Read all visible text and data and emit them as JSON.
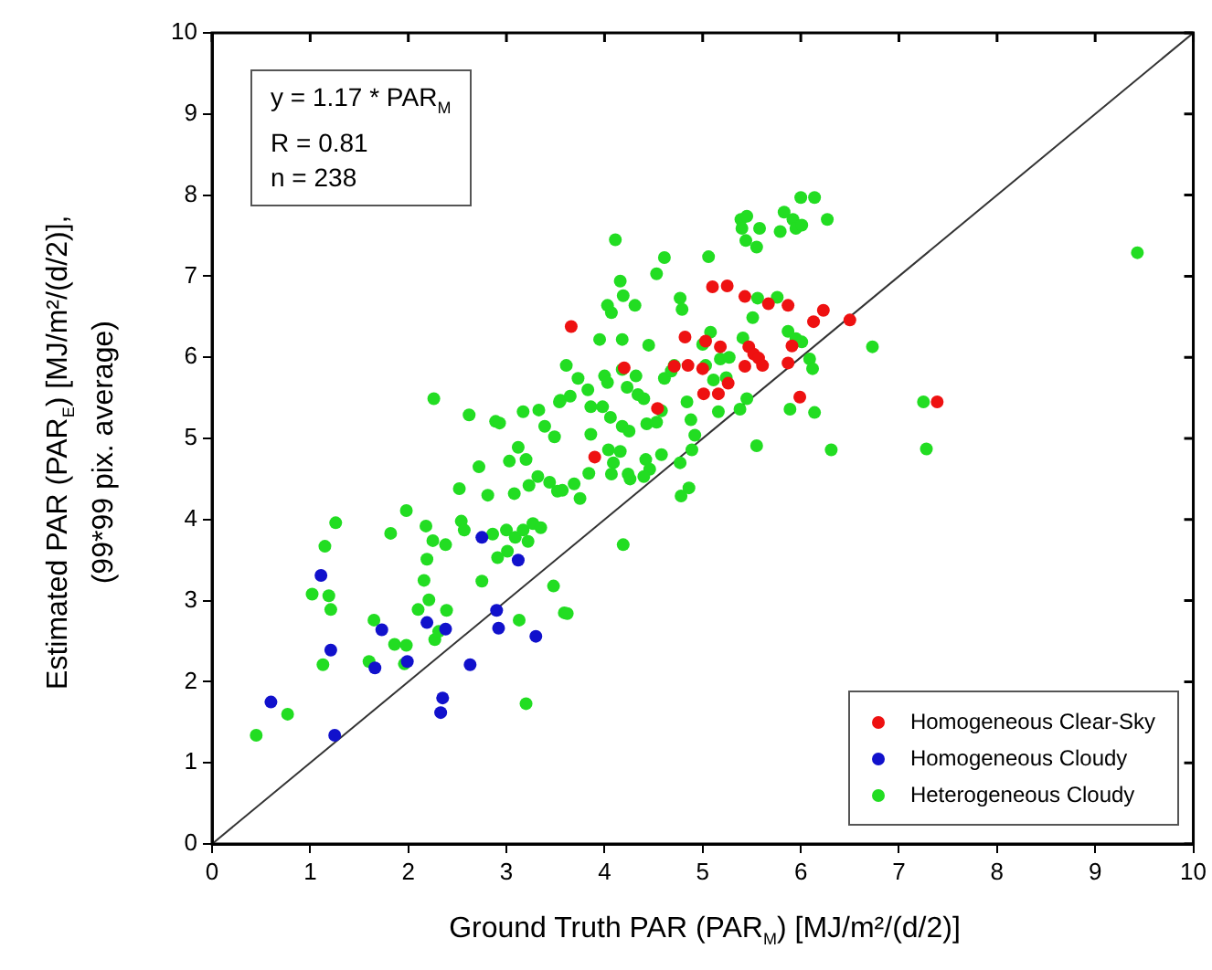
{
  "chart_data": {
    "type": "scatter",
    "xlabel": "Ground Truth PAR (PAR$_{M}$) [MJ/m²/(d/2)]",
    "ylabel": "Estimated PAR (PAR$_{E}$) [MJ/m²/(d/2)],\n(99*99 pix. average)",
    "annotations": [
      "y = 1.17 * PAR$_{M}$",
      "R = 0.81",
      "n = 238"
    ],
    "xlim": [
      0,
      10
    ],
    "ylim": [
      0,
      10
    ],
    "xticks": [
      0,
      1,
      2,
      3,
      4,
      5,
      6,
      7,
      8,
      9,
      10
    ],
    "yticks": [
      0,
      1,
      2,
      3,
      4,
      5,
      6,
      7,
      8,
      9,
      10
    ],
    "grid": false,
    "legend": "bottom right",
    "series": [
      {
        "name": "Homogeneous Clear-Sky",
        "color": "#ee1111",
        "marker": "circle",
        "x": [
          3.66,
          3.9,
          4.2,
          4.54,
          4.82,
          5.1,
          5.25,
          5.43,
          5.67,
          5.87,
          6.23,
          6.13,
          6.5,
          4.85,
          4.71,
          5.0,
          5.01,
          5.16,
          5.26,
          5.03,
          5.18,
          5.43,
          5.47,
          5.52,
          5.57,
          5.61,
          5.87,
          5.91,
          5.99,
          7.39
        ],
        "values": [
          6.38,
          4.77,
          5.87,
          5.37,
          6.25,
          6.87,
          6.88,
          6.75,
          6.66,
          6.64,
          6.58,
          6.44,
          6.46,
          5.9,
          5.89,
          5.86,
          5.55,
          5.55,
          5.68,
          6.2,
          6.13,
          5.89,
          6.13,
          6.04,
          5.99,
          5.9,
          5.93,
          6.14,
          5.51,
          5.45
        ]
      },
      {
        "name": "Homogeneous Cloudy",
        "color": "#1111cc",
        "marker": "circle",
        "x": [
          1.11,
          1.21,
          0.6,
          1.25,
          1.73,
          1.66,
          2.19,
          2.38,
          2.35,
          2.33,
          1.99,
          2.63,
          2.75,
          3.12,
          2.9,
          2.92,
          3.3
        ],
        "values": [
          3.31,
          2.39,
          1.75,
          1.34,
          2.64,
          2.17,
          2.73,
          2.65,
          1.8,
          1.62,
          2.25,
          2.21,
          3.78,
          3.5,
          2.88,
          2.66,
          2.56
        ]
      },
      {
        "name": "Heterogeneous Cloudy",
        "color": "#22dd22",
        "marker": "circle",
        "x": [
          2.26,
          0.45,
          0.77,
          1.26,
          1.15,
          1.02,
          1.19,
          1.21,
          1.13,
          1.65,
          1.6,
          1.86,
          1.98,
          1.96,
          1.82,
          1.98,
          2.18,
          2.25,
          2.38,
          2.19,
          2.16,
          2.21,
          2.1,
          2.39,
          2.27,
          2.31,
          2.54,
          2.57,
          2.52,
          2.72,
          2.81,
          2.62,
          2.89,
          2.93,
          3.17,
          3.33,
          3.12,
          3.03,
          3.2,
          3.39,
          3.49,
          3.54,
          3.32,
          3.44,
          3.52,
          3.23,
          3.08,
          2.86,
          3.0,
          3.09,
          3.17,
          3.27,
          3.35,
          3.22,
          3.01,
          2.91,
          2.75,
          3.13,
          3.48,
          3.2,
          3.59,
          3.62,
          4.19,
          4.11,
          4.61,
          4.53,
          5.06,
          4.16,
          4.19,
          4.03,
          4.07,
          4.31,
          4.77,
          4.79,
          3.95,
          4.18,
          4.45,
          3.61,
          3.55,
          3.65,
          3.73,
          3.83,
          3.86,
          4.0,
          4.03,
          4.18,
          4.23,
          4.32,
          4.34,
          4.4,
          3.98,
          4.06,
          4.18,
          4.25,
          4.43,
          4.53,
          4.58,
          4.61,
          4.68,
          3.86,
          4.04,
          4.16,
          4.09,
          4.07,
          4.24,
          4.26,
          4.42,
          4.46,
          4.4,
          4.58,
          3.57,
          3.69,
          3.75,
          3.84,
          4.84,
          4.88,
          4.92,
          4.89,
          4.77,
          4.78,
          4.86,
          5.16,
          5.11,
          5.24,
          5.18,
          5.27,
          5.08,
          5.0,
          5.41,
          5.51,
          5.56,
          5.76,
          5.87,
          5.95,
          6.01,
          6.09,
          6.12,
          5.89,
          6.14,
          5.55,
          6.31,
          5.45,
          5.38,
          4.71,
          5.03,
          5.39,
          5.45,
          5.4,
          5.44,
          5.55,
          5.58,
          5.79,
          5.83,
          5.92,
          5.95,
          6.01,
          6.0,
          6.14,
          6.27,
          6.73,
          7.25,
          7.28,
          9.43
        ],
        "values": [
          5.49,
          1.34,
          1.6,
          3.96,
          3.67,
          3.08,
          3.06,
          2.89,
          2.21,
          2.76,
          2.25,
          2.46,
          2.45,
          2.22,
          3.83,
          4.11,
          3.92,
          3.74,
          3.69,
          3.51,
          3.25,
          3.01,
          2.89,
          2.88,
          2.52,
          2.62,
          3.98,
          3.87,
          4.38,
          4.65,
          4.3,
          5.29,
          5.21,
          5.19,
          5.33,
          5.35,
          4.89,
          4.72,
          4.74,
          5.15,
          5.02,
          5.45,
          4.53,
          4.46,
          4.35,
          4.42,
          4.32,
          3.82,
          3.87,
          3.78,
          3.87,
          3.95,
          3.9,
          3.73,
          3.61,
          3.53,
          3.24,
          2.76,
          3.18,
          1.73,
          2.85,
          2.84,
          3.69,
          7.45,
          7.23,
          7.03,
          7.24,
          6.94,
          6.76,
          6.64,
          6.55,
          6.64,
          6.73,
          6.59,
          6.22,
          6.22,
          6.15,
          5.9,
          5.47,
          5.52,
          5.74,
          5.6,
          5.39,
          5.77,
          5.69,
          5.85,
          5.63,
          5.77,
          5.54,
          5.49,
          5.39,
          5.26,
          5.15,
          5.09,
          5.18,
          5.2,
          5.34,
          5.74,
          5.83,
          5.05,
          4.86,
          4.84,
          4.7,
          4.56,
          4.56,
          4.5,
          4.74,
          4.62,
          4.53,
          4.8,
          4.36,
          4.44,
          4.26,
          4.57,
          5.45,
          5.23,
          5.04,
          4.86,
          4.7,
          4.29,
          4.39,
          5.33,
          5.72,
          5.75,
          5.98,
          6.0,
          6.31,
          6.16,
          6.24,
          6.49,
          6.73,
          6.74,
          6.32,
          6.23,
          6.19,
          5.98,
          5.86,
          5.36,
          5.32,
          4.91,
          4.86,
          5.49,
          5.36,
          5.9,
          5.9,
          7.7,
          7.74,
          7.59,
          7.44,
          7.36,
          7.59,
          7.55,
          7.79,
          7.7,
          7.59,
          7.63,
          7.97,
          7.97,
          7.7,
          6.13,
          5.45,
          4.87,
          7.29
        ]
      },
      {
        "type": "line",
        "color": "#333333",
        "marker": "none",
        "x": [
          0,
          10
        ],
        "values": [
          0,
          10
        ]
      }
    ]
  }
}
